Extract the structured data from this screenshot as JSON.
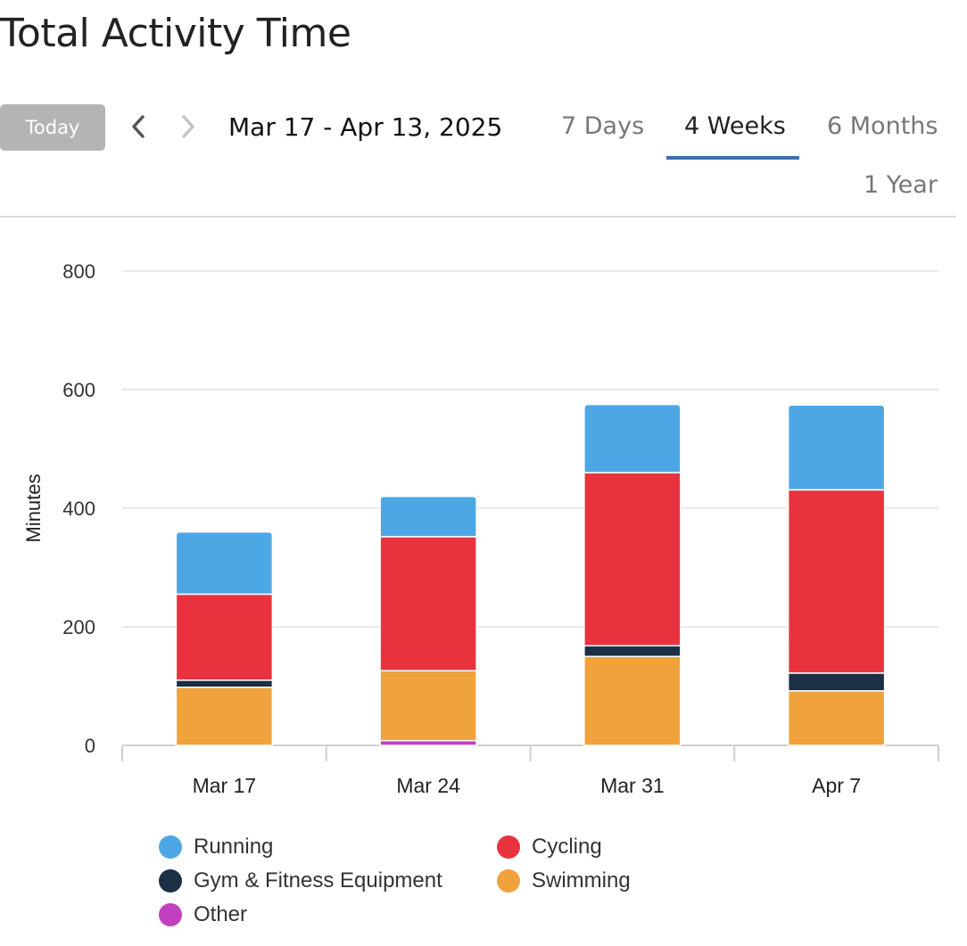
{
  "header": {
    "title": "Total Activity Time",
    "today_label": "Today",
    "date_range": "Mar 17 - Apr 13, 2025"
  },
  "tabs": [
    {
      "label": "7 Days",
      "active": false
    },
    {
      "label": "4 Weeks",
      "active": true
    },
    {
      "label": "6 Months",
      "active": false
    },
    {
      "label": "1 Year",
      "active": false
    }
  ],
  "icons": {
    "prev": "chevron-left-icon",
    "next": "chevron-right-icon"
  },
  "chart_data": {
    "type": "bar",
    "stacked": true,
    "title": "",
    "xlabel": "",
    "ylabel": "Minutes",
    "ylim": [
      0,
      800
    ],
    "yticks": [
      0,
      200,
      400,
      600,
      800
    ],
    "grid": true,
    "legend_position": "bottom",
    "categories": [
      "Mar 17",
      "Mar 24",
      "Mar 31",
      "Apr 7"
    ],
    "series": [
      {
        "name": "Other",
        "color": "#c23fbf",
        "values": [
          0,
          8,
          0,
          0
        ]
      },
      {
        "name": "Swimming",
        "color": "#f0a33c",
        "values": [
          98,
          118,
          150,
          92
        ]
      },
      {
        "name": "Gym & Fitness Equipment",
        "color": "#1b2f45",
        "values": [
          12,
          0,
          18,
          30
        ]
      },
      {
        "name": "Cycling",
        "color": "#e8333f",
        "values": [
          145,
          226,
          292,
          309
        ]
      },
      {
        "name": "Running",
        "color": "#4ea7e5",
        "values": [
          105,
          68,
          115,
          143
        ]
      }
    ],
    "legend_order": [
      "Running",
      "Cycling",
      "Gym & Fitness Equipment",
      "Swimming",
      "Other"
    ]
  }
}
